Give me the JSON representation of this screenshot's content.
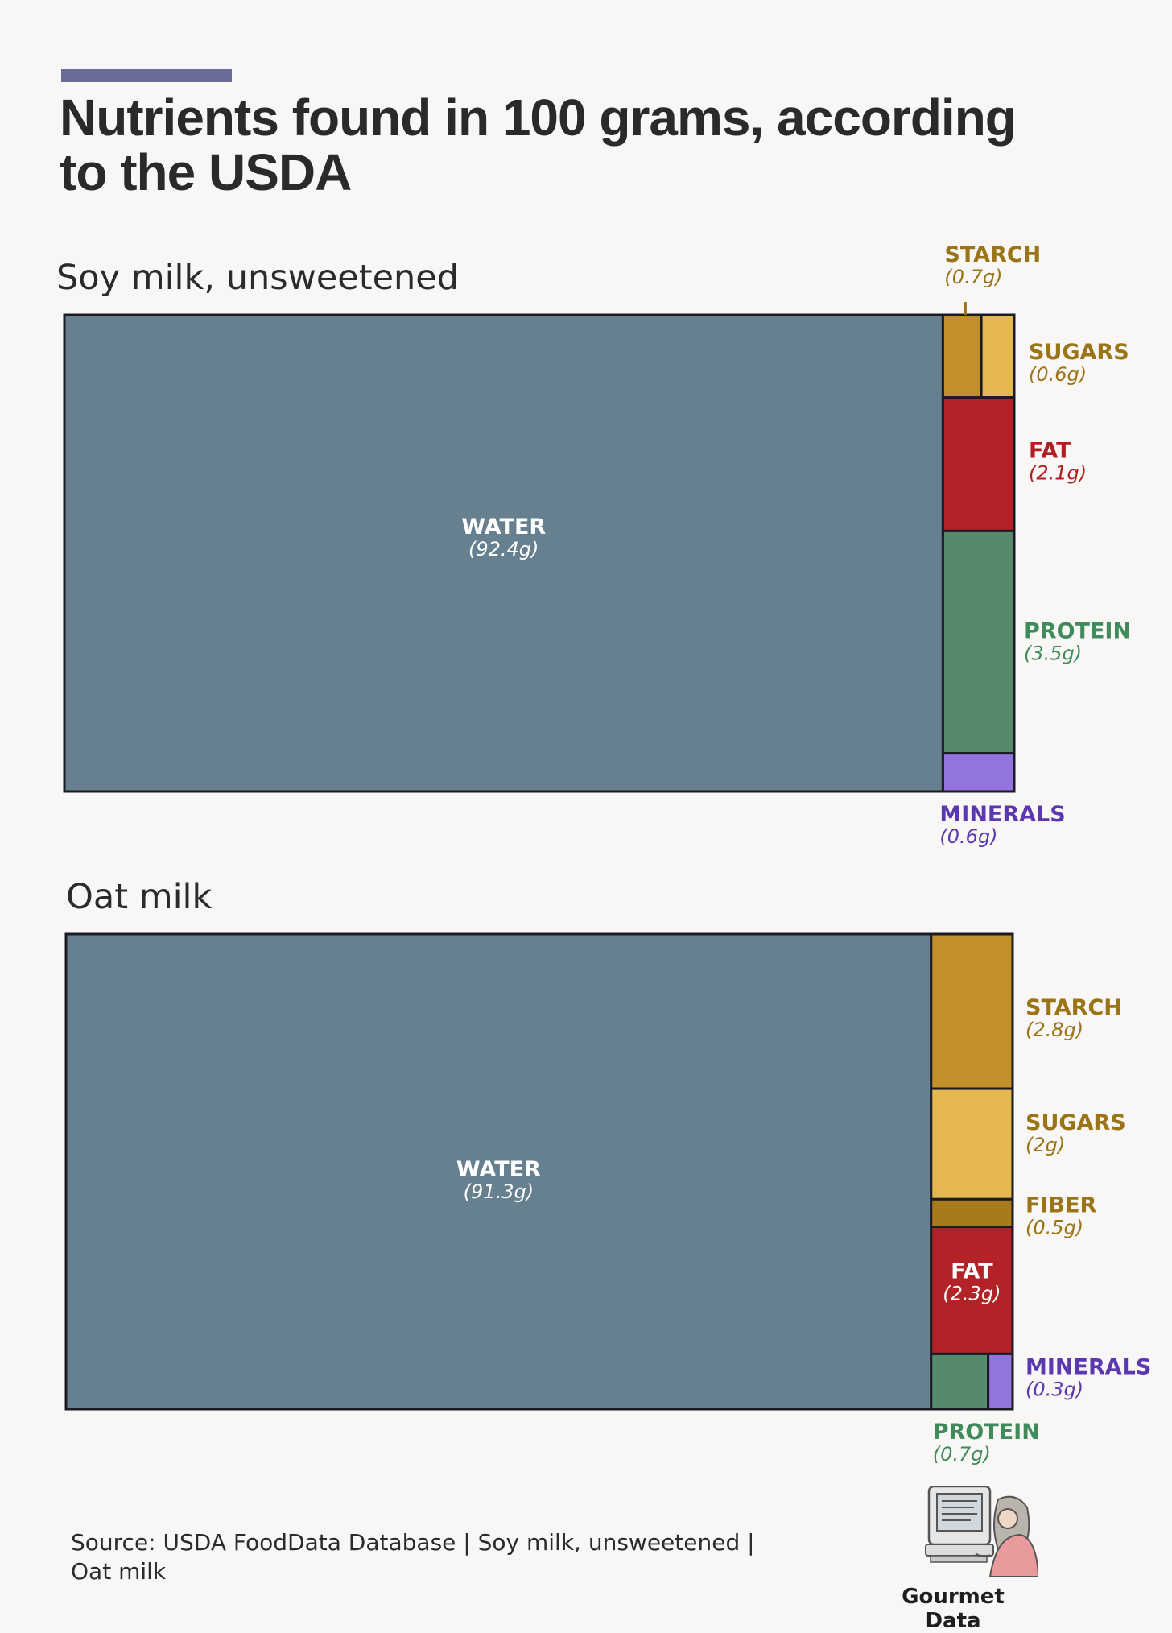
{
  "page": {
    "title_lines": [
      "Nutrients found in 100 grams, according",
      "to the USDA"
    ],
    "accent_color": "#6a6d99",
    "background": "#f8f7f5",
    "source_lines": [
      "Source: USDA FoodData Database | Soy milk, unsweetened |",
      "Oat milk"
    ],
    "brand": "Gourmet Data"
  },
  "colors": {
    "water": "#66808f",
    "starch": "#c28f28",
    "sugars": "#e5b84f",
    "fiber": "#a77b1c",
    "fat": "#b22226",
    "protein": "#558a6c",
    "minerals": "#9373dc",
    "outline": "#1b1b26",
    "label_starch": "#9a7417",
    "label_sugars": "#9a7417",
    "label_fiber": "#9a7417",
    "label_fat": "#b01e22",
    "label_protein": "#3f8b5b",
    "label_minerals": "#5c38b0",
    "label_water": "#ffffff"
  },
  "chart_data": [
    {
      "type": "treemap",
      "title": "Soy milk, unsweetened",
      "unit": "g",
      "total_basis": "100 grams",
      "items": [
        {
          "name": "WATER",
          "value": 92.4,
          "value_label": "(92.4g)",
          "color_key": "water"
        },
        {
          "name": "STARCH",
          "value": 0.7,
          "value_label": "(0.7g)",
          "color_key": "starch"
        },
        {
          "name": "SUGARS",
          "value": 0.6,
          "value_label": "(0.6g)",
          "color_key": "sugars"
        },
        {
          "name": "FAT",
          "value": 2.1,
          "value_label": "(2.1g)",
          "color_key": "fat"
        },
        {
          "name": "PROTEIN",
          "value": 3.5,
          "value_label": "(3.5g)",
          "color_key": "protein"
        },
        {
          "name": "MINERALS",
          "value": 0.6,
          "value_label": "(0.6g)",
          "color_key": "minerals"
        }
      ]
    },
    {
      "type": "treemap",
      "title": "Oat milk",
      "unit": "g",
      "total_basis": "100 grams",
      "items": [
        {
          "name": "WATER",
          "value": 91.3,
          "value_label": "(91.3g)",
          "color_key": "water"
        },
        {
          "name": "STARCH",
          "value": 2.8,
          "value_label": "(2.8g)",
          "color_key": "starch"
        },
        {
          "name": "SUGARS",
          "value": 2,
          "value_label": "(2g)",
          "color_key": "sugars"
        },
        {
          "name": "FIBER",
          "value": 0.5,
          "value_label": "(0.5g)",
          "color_key": "fiber"
        },
        {
          "name": "FAT",
          "value": 2.3,
          "value_label": "(2.3g)",
          "color_key": "fat"
        },
        {
          "name": "PROTEIN",
          "value": 0.7,
          "value_label": "(0.7g)",
          "color_key": "protein"
        },
        {
          "name": "MINERALS",
          "value": 0.3,
          "value_label": "(0.3g)",
          "color_key": "minerals"
        }
      ]
    }
  ]
}
